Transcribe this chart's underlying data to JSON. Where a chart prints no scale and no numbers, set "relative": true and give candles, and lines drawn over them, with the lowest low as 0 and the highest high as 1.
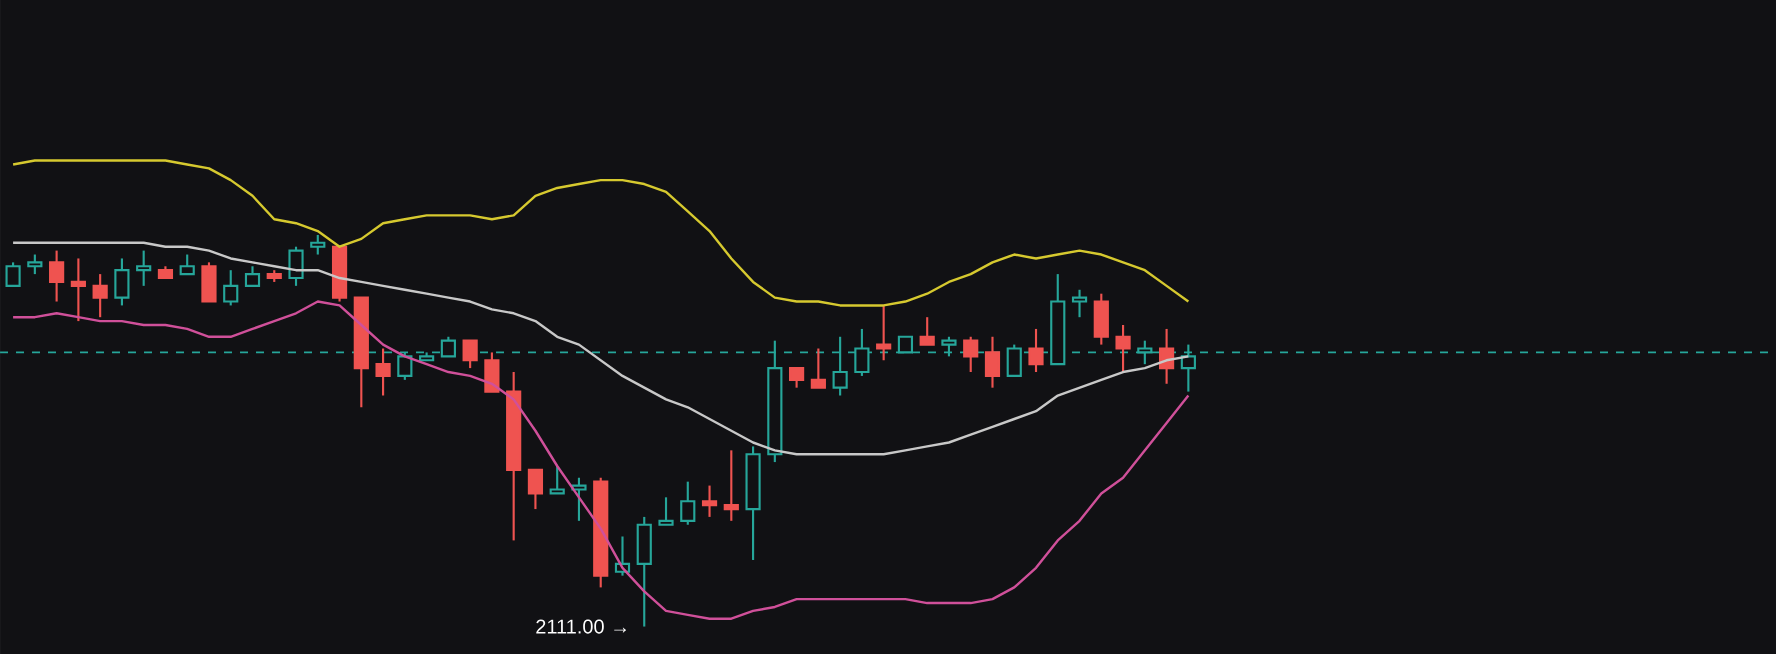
{
  "chart_data": {
    "type": "candlestick",
    "relative": true,
    "categories": [
      null,
      null,
      null,
      null,
      null,
      null,
      null,
      null,
      null,
      null,
      null,
      null,
      null,
      null,
      null,
      null,
      null,
      null,
      null,
      null,
      null,
      null,
      null,
      null,
      null,
      null,
      null,
      null,
      null,
      null,
      null,
      null,
      null,
      null,
      null,
      null,
      null,
      null,
      null,
      null,
      null,
      null,
      null,
      null,
      null,
      null,
      null,
      null,
      null,
      null,
      null,
      null,
      null,
      null,
      null
    ],
    "ohlc": [
      [
        0.87,
        0.93,
        0.87,
        0.92
      ],
      [
        0.92,
        0.95,
        0.9,
        0.93
      ],
      [
        0.93,
        0.96,
        0.83,
        0.88
      ],
      [
        0.88,
        0.94,
        0.78,
        0.87
      ],
      [
        0.87,
        0.9,
        0.79,
        0.84
      ],
      [
        0.84,
        0.94,
        0.82,
        0.91
      ],
      [
        0.91,
        0.96,
        0.87,
        0.92
      ],
      [
        0.91,
        0.92,
        0.89,
        0.89
      ],
      [
        0.9,
        0.95,
        0.9,
        0.92
      ],
      [
        0.92,
        0.93,
        0.83,
        0.83
      ],
      [
        0.83,
        0.91,
        0.82,
        0.87
      ],
      [
        0.87,
        0.92,
        0.87,
        0.9
      ],
      [
        0.9,
        0.91,
        0.88,
        0.89
      ],
      [
        0.89,
        0.97,
        0.87,
        0.96
      ],
      [
        0.97,
        1.0,
        0.95,
        0.98
      ],
      [
        0.97,
        0.97,
        0.83,
        0.84
      ],
      [
        0.84,
        0.84,
        0.56,
        0.66
      ],
      [
        0.67,
        0.71,
        0.59,
        0.64
      ],
      [
        0.64,
        0.7,
        0.63,
        0.69
      ],
      [
        0.68,
        0.7,
        0.68,
        0.69
      ],
      [
        0.69,
        0.74,
        0.69,
        0.73
      ],
      [
        0.73,
        0.73,
        0.66,
        0.68
      ],
      [
        0.68,
        0.7,
        0.6,
        0.6
      ],
      [
        0.6,
        0.65,
        0.22,
        0.4
      ],
      [
        0.4,
        0.4,
        0.3,
        0.34
      ],
      [
        0.34,
        0.41,
        0.34,
        0.35
      ],
      [
        0.35,
        0.38,
        0.27,
        0.36
      ],
      [
        0.37,
        0.38,
        0.1,
        0.13
      ],
      [
        0.14,
        0.23,
        0.13,
        0.16
      ],
      [
        0.16,
        0.28,
        0.0,
        0.26
      ],
      [
        0.26,
        0.33,
        0.26,
        0.27
      ],
      [
        0.27,
        0.37,
        0.26,
        0.32
      ],
      [
        0.32,
        0.36,
        0.28,
        0.31
      ],
      [
        0.31,
        0.45,
        0.27,
        0.3
      ],
      [
        0.3,
        0.46,
        0.17,
        0.44
      ],
      [
        0.44,
        0.73,
        0.42,
        0.66
      ],
      [
        0.66,
        0.66,
        0.61,
        0.63
      ],
      [
        0.63,
        0.71,
        0.61,
        0.61
      ],
      [
        0.61,
        0.74,
        0.59,
        0.65
      ],
      [
        0.65,
        0.76,
        0.64,
        0.71
      ],
      [
        0.72,
        0.82,
        0.68,
        0.71
      ],
      [
        0.7,
        0.74,
        0.7,
        0.74
      ],
      [
        0.74,
        0.79,
        0.72,
        0.72
      ],
      [
        0.72,
        0.74,
        0.69,
        0.73
      ],
      [
        0.73,
        0.74,
        0.65,
        0.69
      ],
      [
        0.7,
        0.74,
        0.61,
        0.64
      ],
      [
        0.64,
        0.72,
        0.64,
        0.71
      ],
      [
        0.71,
        0.76,
        0.65,
        0.67
      ],
      [
        0.67,
        0.9,
        0.67,
        0.83
      ],
      [
        0.83,
        0.86,
        0.79,
        0.84
      ],
      [
        0.83,
        0.85,
        0.72,
        0.74
      ],
      [
        0.74,
        0.77,
        0.65,
        0.71
      ],
      [
        0.7,
        0.73,
        0.67,
        0.71
      ],
      [
        0.71,
        0.76,
        0.62,
        0.66
      ],
      [
        0.66,
        0.72,
        0.6,
        0.69
      ]
    ],
    "colors": [
      "#26a69a",
      "#26a69a",
      "#ef5350",
      "#ef5350",
      "#ef5350",
      "#26a69a",
      "#26a69a",
      "#ef5350",
      "#26a69a",
      "#ef5350",
      "#26a69a",
      "#26a69a",
      "#ef5350",
      "#26a69a",
      "#26a69a",
      "#ef5350",
      "#ef5350",
      "#ef5350",
      "#26a69a",
      "#26a69a",
      "#26a69a",
      "#ef5350",
      "#ef5350",
      "#ef5350",
      "#ef5350",
      "#26a69a",
      "#26a69a",
      "#ef5350",
      "#26a69a",
      "#26a69a",
      "#26a69a",
      "#26a69a",
      "#ef5350",
      "#ef5350",
      "#26a69a",
      "#26a69a",
      "#ef5350",
      "#ef5350",
      "#26a69a",
      "#26a69a",
      "#ef5350",
      "#26a69a",
      "#ef5350",
      "#26a69a",
      "#ef5350",
      "#ef5350",
      "#26a69a",
      "#ef5350",
      "#26a69a",
      "#26a69a",
      "#ef5350",
      "#ef5350",
      "#26a69a",
      "#ef5350",
      "#26a69a"
    ],
    "series": [
      {
        "type": "line",
        "color": "#d6c92f",
        "values": [
          1.18,
          1.19,
          1.19,
          1.19,
          1.19,
          1.19,
          1.19,
          1.19,
          1.18,
          1.17,
          1.14,
          1.1,
          1.04,
          1.03,
          1.01,
          0.97,
          0.99,
          1.03,
          1.04,
          1.05,
          1.05,
          1.05,
          1.04,
          1.05,
          1.1,
          1.12,
          1.13,
          1.14,
          1.14,
          1.13,
          1.11,
          1.06,
          1.01,
          0.94,
          0.88,
          0.84,
          0.83,
          0.83,
          0.82,
          0.82,
          0.82,
          0.83,
          0.85,
          0.88,
          0.9,
          0.93,
          0.95,
          0.94,
          0.95,
          0.96,
          0.95,
          0.93,
          0.91,
          0.87,
          0.83
        ]
      },
      {
        "type": "line",
        "color": "#c8c8c8",
        "values": [
          0.98,
          0.98,
          0.98,
          0.98,
          0.98,
          0.98,
          0.98,
          0.97,
          0.97,
          0.96,
          0.94,
          0.93,
          0.92,
          0.91,
          0.91,
          0.89,
          0.88,
          0.87,
          0.86,
          0.85,
          0.84,
          0.83,
          0.81,
          0.8,
          0.78,
          0.74,
          0.72,
          0.68,
          0.64,
          0.61,
          0.58,
          0.56,
          0.53,
          0.5,
          0.47,
          0.45,
          0.44,
          0.44,
          0.44,
          0.44,
          0.44,
          0.45,
          0.46,
          0.47,
          0.49,
          0.51,
          0.53,
          0.55,
          0.59,
          0.61,
          0.63,
          0.65,
          0.66,
          0.68,
          0.69
        ]
      },
      {
        "type": "line",
        "color": "#d0509a",
        "values": [
          0.79,
          0.79,
          0.8,
          0.79,
          0.78,
          0.78,
          0.77,
          0.77,
          0.76,
          0.74,
          0.74,
          0.76,
          0.78,
          0.8,
          0.83,
          0.82,
          0.77,
          0.72,
          0.69,
          0.67,
          0.65,
          0.64,
          0.62,
          0.58,
          0.5,
          0.41,
          0.33,
          0.25,
          0.15,
          0.09,
          0.04,
          0.03,
          0.02,
          0.02,
          0.04,
          0.05,
          0.07,
          0.07,
          0.07,
          0.07,
          0.07,
          0.07,
          0.06,
          0.06,
          0.06,
          0.07,
          0.1,
          0.15,
          0.22,
          0.27,
          0.34,
          0.38,
          0.45,
          0.52,
          0.59
        ]
      }
    ],
    "ref_lines": [
      {
        "axis": "y",
        "value": 0.7,
        "color": "#26a69a",
        "line_style": "dashed"
      }
    ],
    "annotations": [
      "2111.00 →"
    ]
  }
}
